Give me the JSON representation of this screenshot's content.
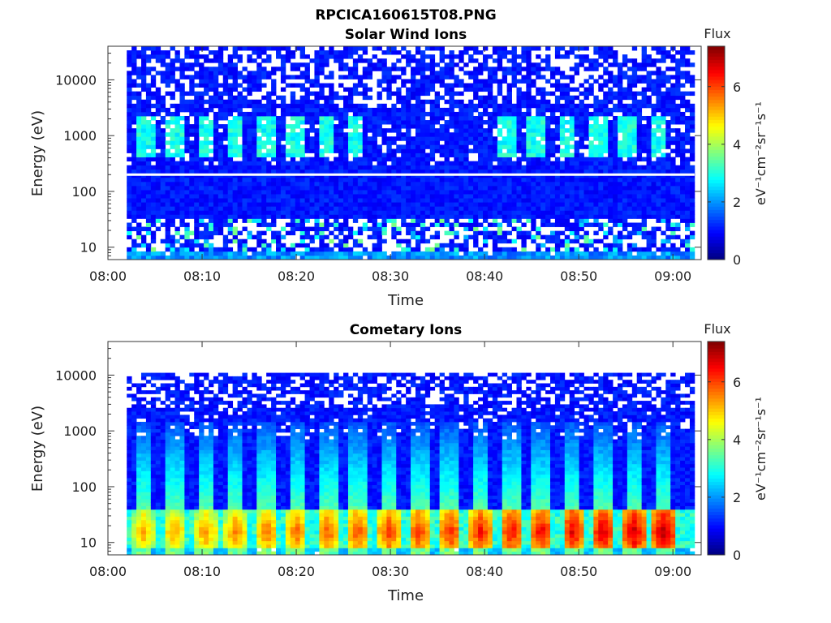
{
  "figure": {
    "title": "RPCICA160615T08.PNG"
  },
  "chart_data": [
    {
      "type": "heatmap",
      "title": "Solar Wind Ions",
      "xlabel": "Time",
      "ylabel": "Energy (eV)",
      "x_ticks": [
        "08:00",
        "08:10",
        "08:20",
        "08:30",
        "08:40",
        "08:50",
        "09:00"
      ],
      "x_range": [
        "08:00",
        "09:03"
      ],
      "data_time_range": [
        "08:02",
        "09:02"
      ],
      "y_scale": "log",
      "y_ticks": [
        "10",
        "100",
        "1000",
        "10000"
      ],
      "y_range": [
        6,
        40000
      ],
      "colorbar": {
        "title": "Flux",
        "label": "eV⁻¹cm⁻²sr⁻¹s⁻¹",
        "ticks": [
          "0",
          "2",
          "4",
          "6"
        ],
        "range": [
          0,
          7.4
        ],
        "colormap": "jet"
      },
      "features": {
        "gap_line_energy_eV": 200,
        "burst_period_min": 3.3,
        "burst_energy_band_eV": [
          450,
          2200
        ],
        "burst_peak_flux": 3.3,
        "burst_times_min": [
          3.7,
          6.8,
          10.1,
          13.2,
          16.5,
          19.7,
          22.9,
          26.1,
          42.0,
          45.2,
          48.5,
          51.7,
          54.9,
          58.2
        ],
        "low_energy_band_eV": [
          8,
          30
        ],
        "background_flux": 0.8
      }
    },
    {
      "type": "heatmap",
      "title": "Cometary Ions",
      "xlabel": "Time",
      "ylabel": "Energy (eV)",
      "x_ticks": [
        "08:00",
        "08:10",
        "08:20",
        "08:30",
        "08:40",
        "08:50",
        "09:00"
      ],
      "x_range": [
        "08:00",
        "09:03"
      ],
      "data_time_range": [
        "08:02",
        "09:02"
      ],
      "y_scale": "log",
      "y_ticks": [
        "10",
        "100",
        "1000",
        "10000"
      ],
      "y_range": [
        6,
        40000
      ],
      "data_energy_max_eV": 11000,
      "colorbar": {
        "title": "Flux",
        "label": "eV⁻¹cm⁻²sr⁻¹s⁻¹",
        "ticks": [
          "0",
          "2",
          "4",
          "6"
        ],
        "range": [
          0,
          7.4
        ],
        "colormap": "jet"
      },
      "features": {
        "burst_period_min": 3.3,
        "burst_energy_band_eV": [
          8,
          40
        ],
        "burst_peak_flux_start": 5.0,
        "burst_peak_flux_end": 6.8,
        "burst_times_min": [
          3.5,
          6.8,
          10.1,
          13.3,
          16.6,
          19.8,
          23.1,
          26.3,
          29.6,
          32.8,
          36.1,
          39.3,
          42.6,
          45.8,
          49.1,
          52.3,
          55.6,
          58.8
        ],
        "plume_max_energy_eV": 1500,
        "background_flux": 0.8
      }
    }
  ]
}
